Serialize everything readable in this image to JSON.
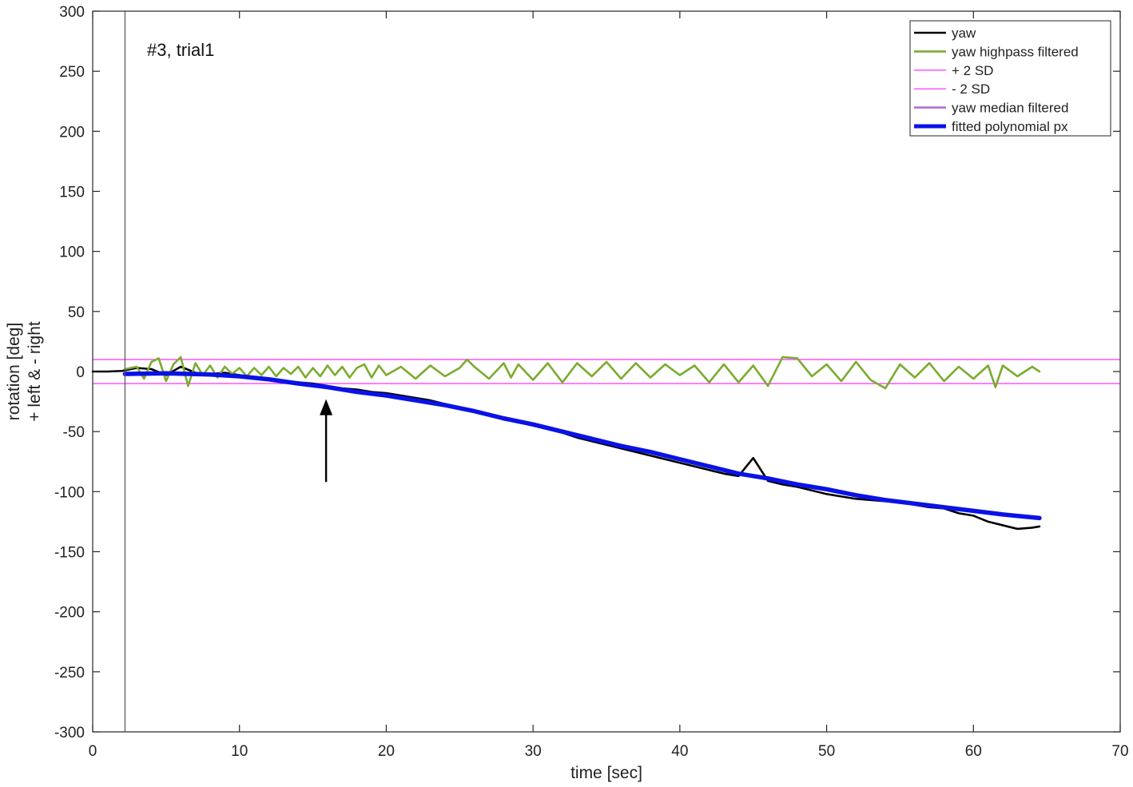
{
  "chart_data": {
    "type": "line",
    "title": "",
    "annotation": "#3, trial1",
    "xlabel": "time [sec]",
    "ylabel_lines": [
      "rotation [deg]",
      "+ left & - right"
    ],
    "xlim": [
      0,
      70
    ],
    "ylim": [
      -300,
      300
    ],
    "xticks": [
      0,
      10,
      20,
      30,
      40,
      50,
      60,
      70
    ],
    "yticks": [
      -300,
      -250,
      -200,
      -150,
      -100,
      -50,
      0,
      50,
      100,
      150,
      200,
      250,
      300
    ],
    "grid": false,
    "legend_position": "top-right",
    "vline_x": 2.2,
    "arrow": {
      "x": 15.9,
      "y_from": -92,
      "y_to": -23
    },
    "series": [
      {
        "name": "yaw",
        "color": "#000000",
        "points": [
          [
            0,
            0
          ],
          [
            1,
            0
          ],
          [
            2,
            0.5
          ],
          [
            2.2,
            1
          ],
          [
            3,
            3
          ],
          [
            4,
            2
          ],
          [
            5,
            -3
          ],
          [
            6,
            4
          ],
          [
            7,
            -1
          ],
          [
            8,
            -2
          ],
          [
            9,
            -1
          ],
          [
            10,
            -3
          ],
          [
            11,
            -5
          ],
          [
            12,
            -6
          ],
          [
            13,
            -8
          ],
          [
            14,
            -9
          ],
          [
            15,
            -10
          ],
          [
            16,
            -12
          ],
          [
            17,
            -14
          ],
          [
            18,
            -15
          ],
          [
            19,
            -17
          ],
          [
            20,
            -18
          ],
          [
            21,
            -20
          ],
          [
            22,
            -22
          ],
          [
            23,
            -24
          ],
          [
            24,
            -27
          ],
          [
            25,
            -30
          ],
          [
            26,
            -33
          ],
          [
            27,
            -36
          ],
          [
            28,
            -40
          ],
          [
            29,
            -42
          ],
          [
            30,
            -45
          ],
          [
            31,
            -48
          ],
          [
            32,
            -51
          ],
          [
            33,
            -55
          ],
          [
            34,
            -58
          ],
          [
            35,
            -61
          ],
          [
            36,
            -64
          ],
          [
            37,
            -67
          ],
          [
            38,
            -70
          ],
          [
            39,
            -73
          ],
          [
            40,
            -76
          ],
          [
            41,
            -79
          ],
          [
            42,
            -82
          ],
          [
            43,
            -85
          ],
          [
            44,
            -87
          ],
          [
            45,
            -72
          ],
          [
            46,
            -91
          ],
          [
            47,
            -94
          ],
          [
            48,
            -96
          ],
          [
            49,
            -99
          ],
          [
            50,
            -102
          ],
          [
            51,
            -104
          ],
          [
            52,
            -106
          ],
          [
            53,
            -107
          ],
          [
            54,
            -108
          ],
          [
            55,
            -108
          ],
          [
            56,
            -111
          ],
          [
            57,
            -113
          ],
          [
            58,
            -114
          ],
          [
            59,
            -118
          ],
          [
            60,
            -120
          ],
          [
            61,
            -125
          ],
          [
            62,
            -128
          ],
          [
            63,
            -131
          ],
          [
            64,
            -130
          ],
          [
            64.5,
            -129
          ]
        ]
      },
      {
        "name": "yaw highpass filtered",
        "color": "#7aac2f",
        "points": [
          [
            2.2,
            2
          ],
          [
            3,
            4
          ],
          [
            3.5,
            -6
          ],
          [
            4,
            8
          ],
          [
            4.5,
            11
          ],
          [
            5,
            -8
          ],
          [
            5.5,
            6
          ],
          [
            6,
            12
          ],
          [
            6.5,
            -12
          ],
          [
            7,
            7
          ],
          [
            7.5,
            -3
          ],
          [
            8,
            5
          ],
          [
            8.5,
            -5
          ],
          [
            9,
            4
          ],
          [
            9.5,
            -2
          ],
          [
            10,
            3
          ],
          [
            10.5,
            -4
          ],
          [
            11,
            3
          ],
          [
            11.5,
            -3
          ],
          [
            12,
            4
          ],
          [
            12.5,
            -4
          ],
          [
            13,
            3
          ],
          [
            13.5,
            -2
          ],
          [
            14,
            4
          ],
          [
            14.5,
            -5
          ],
          [
            15,
            3
          ],
          [
            15.5,
            -4
          ],
          [
            16,
            5
          ],
          [
            16.5,
            -3
          ],
          [
            17,
            4
          ],
          [
            17.5,
            -5
          ],
          [
            18,
            3
          ],
          [
            18.5,
            6
          ],
          [
            19,
            -5
          ],
          [
            19.5,
            5
          ],
          [
            20,
            -3
          ],
          [
            21,
            4
          ],
          [
            22,
            -6
          ],
          [
            23,
            5
          ],
          [
            24,
            -4
          ],
          [
            25,
            3
          ],
          [
            25.5,
            10
          ],
          [
            26,
            4
          ],
          [
            27,
            -6
          ],
          [
            28,
            7
          ],
          [
            28.5,
            -5
          ],
          [
            29,
            6
          ],
          [
            30,
            -7
          ],
          [
            31,
            7
          ],
          [
            32,
            -9
          ],
          [
            33,
            7
          ],
          [
            34,
            -4
          ],
          [
            35,
            8
          ],
          [
            36,
            -6
          ],
          [
            37,
            7
          ],
          [
            38,
            -5
          ],
          [
            39,
            6
          ],
          [
            40,
            -3
          ],
          [
            41,
            5
          ],
          [
            42,
            -9
          ],
          [
            43,
            6
          ],
          [
            44,
            -9
          ],
          [
            45,
            5
          ],
          [
            46,
            -12
          ],
          [
            47,
            12
          ],
          [
            48,
            11
          ],
          [
            49,
            -4
          ],
          [
            50,
            6
          ],
          [
            51,
            -8
          ],
          [
            52,
            8
          ],
          [
            53,
            -7
          ],
          [
            54,
            -14
          ],
          [
            55,
            6
          ],
          [
            56,
            -5
          ],
          [
            57,
            7
          ],
          [
            58,
            -8
          ],
          [
            59,
            4
          ],
          [
            60,
            -6
          ],
          [
            61,
            5
          ],
          [
            61.5,
            -13
          ],
          [
            62,
            5
          ],
          [
            63,
            -4
          ],
          [
            64,
            4
          ],
          [
            64.5,
            0
          ]
        ]
      },
      {
        "name": "+ 2 SD",
        "color": "#ff44ff",
        "points": [
          [
            0,
            10
          ],
          [
            70,
            10
          ]
        ]
      },
      {
        "name": "- 2 SD",
        "color": "#ff44ff",
        "points": [
          [
            0,
            -10
          ],
          [
            70,
            -10
          ]
        ]
      },
      {
        "name": "yaw median filtered",
        "color": "#b070d0",
        "points": []
      },
      {
        "name": "fitted polynomial px",
        "color": "#0a12e6",
        "points": [
          [
            2.2,
            -2
          ],
          [
            5,
            -1.5
          ],
          [
            8,
            -2.5
          ],
          [
            10,
            -4
          ],
          [
            12,
            -6.5
          ],
          [
            14,
            -10
          ],
          [
            16,
            -13
          ],
          [
            18,
            -17
          ],
          [
            20,
            -20
          ],
          [
            22,
            -24
          ],
          [
            24,
            -28
          ],
          [
            26,
            -33
          ],
          [
            28,
            -39
          ],
          [
            30,
            -44
          ],
          [
            32,
            -50
          ],
          [
            34,
            -56
          ],
          [
            36,
            -62
          ],
          [
            38,
            -67
          ],
          [
            40,
            -73
          ],
          [
            42,
            -79
          ],
          [
            44,
            -85
          ],
          [
            46,
            -89
          ],
          [
            48,
            -94
          ],
          [
            50,
            -98
          ],
          [
            52,
            -103
          ],
          [
            54,
            -107
          ],
          [
            56,
            -110
          ],
          [
            58,
            -113
          ],
          [
            60,
            -116
          ],
          [
            62,
            -119
          ],
          [
            64.5,
            -122
          ]
        ]
      }
    ]
  }
}
